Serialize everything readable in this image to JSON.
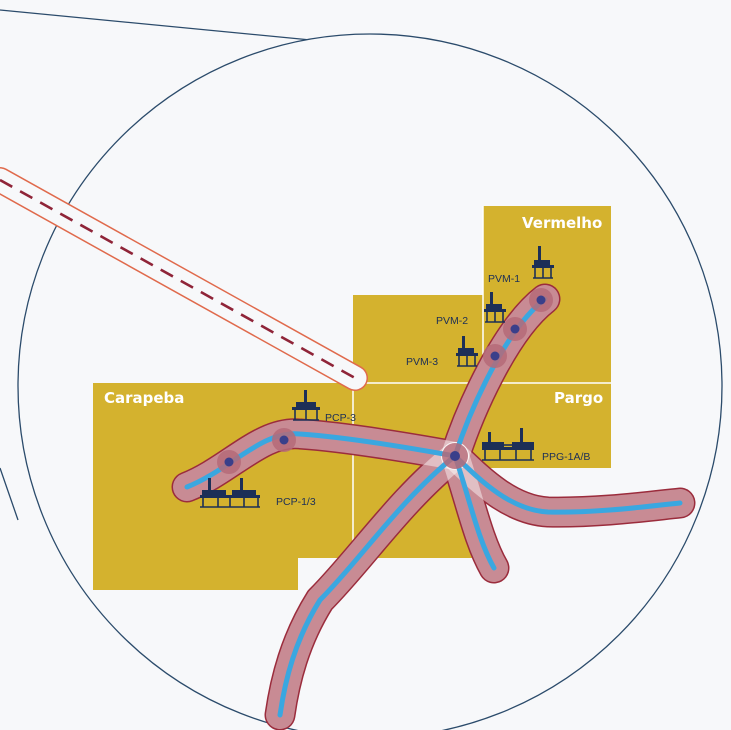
{
  "fields": [
    {
      "id": "vermelho",
      "name": "Vermelho"
    },
    {
      "id": "pargo",
      "name": "Pargo"
    },
    {
      "id": "carapeba",
      "name": "Carapeba"
    }
  ],
  "platforms": [
    {
      "id": "pvm-1",
      "name": "PVM-1"
    },
    {
      "id": "pvm-2",
      "name": "PVM-2"
    },
    {
      "id": "pvm-3",
      "name": "PVM-3"
    },
    {
      "id": "pcp-3",
      "name": "PCP-3"
    },
    {
      "id": "pcp-1-3",
      "name": "PCP-1/3"
    },
    {
      "id": "ppg-1a-b",
      "name": "PPG-1A/B"
    }
  ],
  "colors": {
    "field_fill": "#d4b22e",
    "field_divider": "#ffffff",
    "pipeline": "#3aa7e0",
    "pipeline_corridor": "#9b2c3c",
    "corridor_fill": "#ffffff",
    "node_halo": "#b56a78",
    "node_core": "#3a3f8a",
    "platform_icon": "#1c2f57",
    "zoom_circle": "#2b4b6b",
    "channel_outline": "#e06a4c",
    "channel_dash": "#8f2438"
  }
}
